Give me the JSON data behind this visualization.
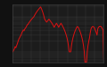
{
  "background_color": "#111111",
  "plot_bg_color": "#1c1c1c",
  "grid_color": "#444444",
  "line_color": "#dd1111",
  "line_width": 0.7,
  "ylim_log": [
    0.5,
    22
  ],
  "values": [
    1.0,
    1.1,
    1.2,
    1.4,
    1.3,
    1.5,
    1.7,
    2.0,
    2.3,
    2.5,
    2.8,
    3.0,
    3.5,
    3.8,
    4.2,
    4.0,
    4.5,
    4.8,
    5.2,
    5.8,
    6.0,
    6.5,
    7.0,
    7.5,
    8.0,
    8.5,
    9.0,
    9.5,
    10.0,
    11.0,
    12.0,
    13.0,
    14.0,
    15.0,
    16.0,
    17.0,
    18.0,
    19.0,
    17.0,
    15.0,
    13.0,
    11.0,
    9.0,
    8.0,
    7.5,
    7.0,
    7.5,
    8.0,
    8.5,
    8.0,
    7.5,
    7.0,
    6.5,
    6.0,
    5.5,
    5.0,
    5.5,
    6.0,
    6.5,
    6.0,
    5.5,
    5.0,
    5.5,
    6.0,
    6.5,
    6.0,
    5.5,
    5.0,
    4.5,
    4.0,
    3.5,
    3.0,
    2.5,
    2.0,
    1.5,
    1.0,
    1.0,
    1.0,
    1.5,
    2.0,
    2.5,
    3.0,
    3.5,
    4.0,
    4.5,
    5.0,
    5.25,
    5.0,
    4.5,
    4.0,
    3.5,
    3.0,
    2.5,
    2.0,
    1.5,
    1.0,
    0.5,
    0.5,
    0.5,
    1.0,
    1.5,
    2.0,
    2.5,
    3.5,
    4.5,
    5.0,
    5.25,
    5.25,
    5.0,
    4.5,
    4.0,
    3.5,
    3.0,
    4.5,
    5.0,
    5.25,
    5.33,
    5.33,
    5.0,
    4.5,
    4.33,
    0.6
  ]
}
